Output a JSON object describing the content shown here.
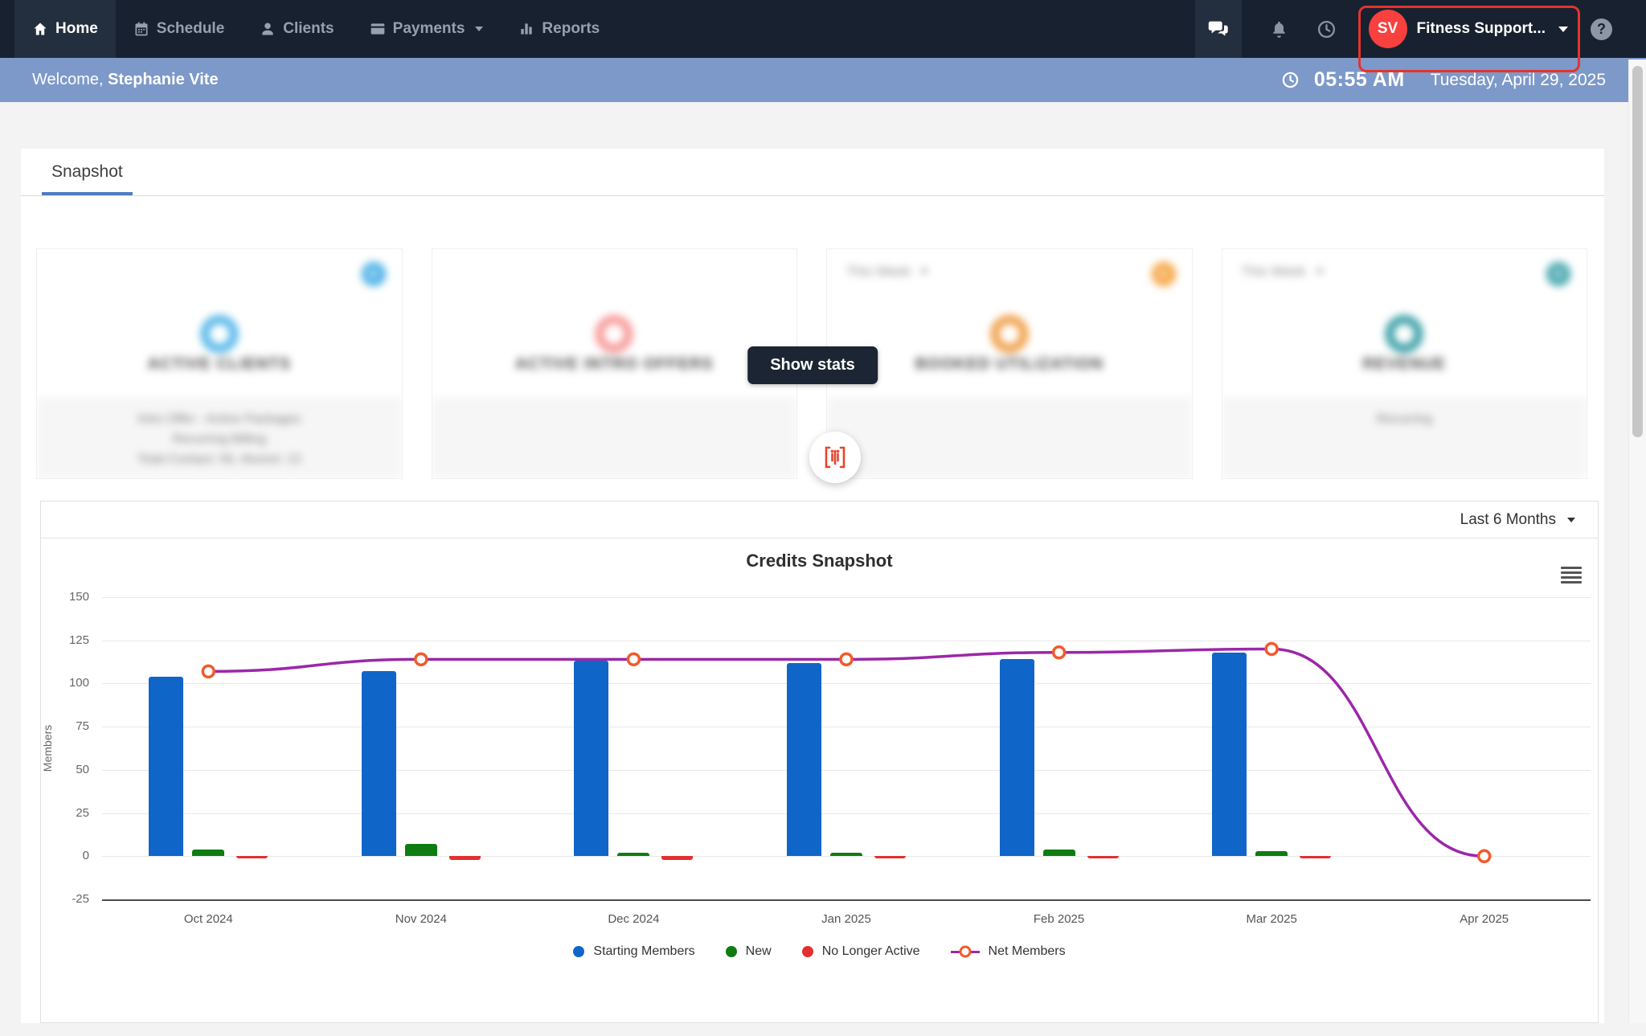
{
  "colors": {
    "navbar_bg": "#18212f",
    "navbar_active_bg": "#232e3e",
    "welcome_bar_bg": "#7d99c9",
    "highlight_red": "#e5332c",
    "avatar_red": "#f8403f",
    "tab_underline": "#4d7cc1",
    "show_stats_bg": "#1b2533",
    "scan_icon_red": "#e8442e"
  },
  "navbar": {
    "items": [
      {
        "label": "Home",
        "icon": "home-icon",
        "active": true
      },
      {
        "label": "Schedule",
        "icon": "calendar-icon"
      },
      {
        "label": "Clients",
        "icon": "person-icon"
      },
      {
        "label": "Payments",
        "icon": "card-icon",
        "dropdown": true
      },
      {
        "label": "Reports",
        "icon": "bar-chart-icon"
      }
    ],
    "account": {
      "initials": "SV",
      "name": "Fitness Support..."
    },
    "help_label": "?"
  },
  "welcome_bar": {
    "greeting": "Welcome,",
    "name": "Stephanie Vite",
    "time": "05:55 AM",
    "date": "Tuesday, April 29, 2025"
  },
  "tabs": {
    "snapshot": "Snapshot"
  },
  "stats_overlay": {
    "show_stats": "Show stats"
  },
  "stat_cards": [
    {
      "title": "ACTIVE CLIENTS",
      "ring_color": "#57b8ea",
      "badge_color": "#45aee6",
      "period": "",
      "footer_lines": [
        "Intro Offer - Active Packages",
        "Recurring Billing",
        "Total Contact: 56, Alumni: 13"
      ]
    },
    {
      "title": "ACTIVE INTRO OFFERS",
      "ring_color": "#f89a9a",
      "badge_color": "",
      "period": "",
      "footer_lines": []
    },
    {
      "title": "BOOKED UTILIZATION",
      "ring_color": "#f0a04a",
      "badge_color": "#f5a23c",
      "period": "This Week",
      "footer_lines": []
    },
    {
      "title": "REVENUE",
      "ring_color": "#3ba0a8",
      "badge_color": "#3fa3ab",
      "period": "This Week",
      "footer_lines": [
        "Recurring"
      ]
    }
  ],
  "chart_card": {
    "range_selector": "Last 6 Months"
  },
  "chart_data": {
    "type": "mixed-bar-line",
    "title": "Credits Snapshot",
    "ylabel": "Members",
    "categories": [
      "Oct 2024",
      "Nov 2024",
      "Dec 2024",
      "Jan 2025",
      "Feb 2025",
      "Mar 2025",
      "Apr 2025"
    ],
    "series": [
      {
        "name": "Starting Members",
        "type": "bar",
        "color": "#1065c8",
        "values": [
          104,
          107,
          113,
          112,
          114,
          118,
          0
        ]
      },
      {
        "name": "New",
        "type": "bar",
        "color": "#0e7c10",
        "values": [
          4,
          7,
          2,
          2,
          4,
          3,
          0
        ]
      },
      {
        "name": "No Longer Active",
        "type": "bar",
        "color": "#e23030",
        "values": [
          -1,
          -2,
          -2,
          -1,
          -1,
          -1,
          0
        ]
      },
      {
        "name": "Net Members",
        "type": "line",
        "color": "#9b27a9",
        "marker_color": "#f15a2b",
        "values": [
          107,
          114,
          114,
          114,
          118,
          120,
          0
        ]
      }
    ],
    "ylim": [
      -25,
      150
    ],
    "yticks": [
      150,
      125,
      100,
      75,
      50,
      25,
      0,
      -25
    ],
    "grid": true,
    "legend_position": "bottom"
  }
}
